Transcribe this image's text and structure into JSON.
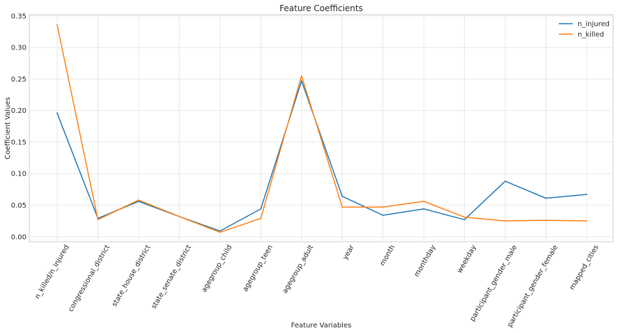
{
  "chart_data": {
    "type": "line",
    "title": "Feature Coefficients",
    "xlabel": "Feature Variables",
    "ylabel": "Coefficient Values",
    "categories": [
      "n_killed/n_injured",
      "congressional_district",
      "state_house_district",
      "state_senate_district",
      "agegroup_child",
      "agegroup_teen",
      "agegroup_adult",
      "year",
      "month",
      "monthday",
      "weekday",
      "participant_gender_male",
      "participant_gender_female",
      "mapped_cities"
    ],
    "series": [
      {
        "name": "n_injured",
        "color": "#1f77b4",
        "values": [
          0.196,
          0.029,
          0.056,
          0.032,
          0.009,
          0.044,
          0.247,
          0.064,
          0.034,
          0.044,
          0.027,
          0.088,
          0.061,
          0.067
        ]
      },
      {
        "name": "n_killed",
        "color": "#ff7f0e",
        "values": [
          0.336,
          0.027,
          0.058,
          0.032,
          0.007,
          0.029,
          0.255,
          0.047,
          0.047,
          0.056,
          0.031,
          0.025,
          0.026,
          0.025
        ]
      }
    ],
    "yticks": [
      "0.00",
      "0.05",
      "0.10",
      "0.15",
      "0.20",
      "0.25",
      "0.30",
      "0.35"
    ],
    "ylim": [
      -0.008,
      0.352
    ],
    "grid": true,
    "legend": "top-right"
  }
}
